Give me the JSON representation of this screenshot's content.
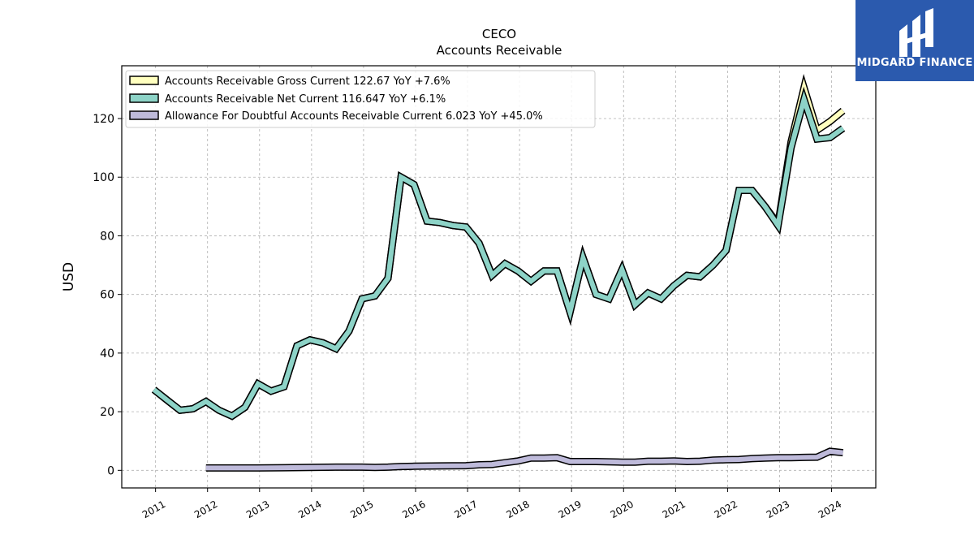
{
  "chart_data": {
    "type": "line",
    "title": "CECO",
    "subtitle": "Accounts Receivable",
    "ylabel": "USD",
    "xlabel": "",
    "ylim": [
      -6,
      138
    ],
    "xlim": [
      2010.35,
      2024.85
    ],
    "y_ticks": [
      0,
      20,
      40,
      60,
      80,
      100,
      120
    ],
    "x_ticks": [
      2011,
      2012,
      2013,
      2014,
      2015,
      2016,
      2017,
      2018,
      2019,
      2020,
      2021,
      2022,
      2023,
      2024
    ],
    "x_tick_labels": [
      "2011",
      "2012",
      "2013",
      "2014",
      "2015",
      "2016",
      "2017",
      "2018",
      "2019",
      "2020",
      "2021",
      "2022",
      "2023",
      "2024"
    ],
    "grid": true,
    "legend_position": "top-left",
    "series": [
      {
        "name": "Accounts Receivable Gross Current",
        "legend_label": "Accounts Receivable Gross Current  122.67 YoY +7.6%",
        "color": "#ffffbf",
        "x": [
          2010.97,
          2011.22,
          2011.47,
          2011.72,
          2011.97,
          2012.22,
          2012.47,
          2012.72,
          2012.97,
          2013.22,
          2013.47,
          2013.72,
          2013.97,
          2014.22,
          2014.47,
          2014.72,
          2014.97,
          2015.22,
          2015.47,
          2015.72,
          2015.97,
          2016.22,
          2016.47,
          2016.72,
          2016.97,
          2017.22,
          2017.47,
          2017.72,
          2017.97,
          2018.22,
          2018.47,
          2018.72,
          2018.97,
          2019.22,
          2019.47,
          2019.72,
          2019.97,
          2020.22,
          2020.47,
          2020.72,
          2020.97,
          2021.22,
          2021.47,
          2021.72,
          2021.97,
          2022.22,
          2022.47,
          2022.72,
          2022.97,
          2023.22,
          2023.47,
          2023.72,
          2023.97,
          2024.22
        ],
        "values": [
          27.5,
          24,
          20.5,
          21,
          23.5,
          20.5,
          18.5,
          21.5,
          29.5,
          27,
          28.5,
          42.5,
          44.5,
          43.5,
          41.5,
          47.5,
          58.5,
          59.5,
          65.5,
          100,
          97.5,
          85,
          84.5,
          83.5,
          83,
          77.5,
          66.5,
          70.5,
          68,
          64.5,
          68,
          68,
          54,
          72.5,
          60,
          58.5,
          68.5,
          56.5,
          60.5,
          58.5,
          63,
          66.5,
          66,
          70,
          75,
          95.5,
          95.5,
          90,
          84,
          112,
          130.5,
          116,
          119,
          122.67
        ]
      },
      {
        "name": "Accounts Receivable Net Current",
        "legend_label": "Accounts Receivable Net Current  116.647 YoY +6.1%",
        "color": "#8dd3c7",
        "x": [
          2010.97,
          2011.22,
          2011.47,
          2011.72,
          2011.97,
          2012.22,
          2012.47,
          2012.72,
          2012.97,
          2013.22,
          2013.47,
          2013.72,
          2013.97,
          2014.22,
          2014.47,
          2014.72,
          2014.97,
          2015.22,
          2015.47,
          2015.72,
          2015.97,
          2016.22,
          2016.47,
          2016.72,
          2016.97,
          2017.22,
          2017.47,
          2017.72,
          2017.97,
          2018.22,
          2018.47,
          2018.72,
          2018.97,
          2019.22,
          2019.47,
          2019.72,
          2019.97,
          2020.22,
          2020.47,
          2020.72,
          2020.97,
          2021.22,
          2021.47,
          2021.72,
          2021.97,
          2022.22,
          2022.47,
          2022.72,
          2022.97,
          2023.22,
          2023.47,
          2023.72,
          2023.97,
          2024.22
        ],
        "values": [
          27.5,
          24,
          20.5,
          21,
          23.5,
          20.5,
          18.5,
          21.5,
          29.5,
          27,
          28.5,
          42.5,
          44.5,
          43.5,
          41.5,
          47.5,
          58.5,
          59.5,
          65.5,
          100,
          97.5,
          85,
          84.5,
          83.5,
          83,
          77.5,
          66.5,
          70.5,
          68,
          64.5,
          68,
          68,
          54,
          72.5,
          60,
          58.5,
          68.5,
          56.5,
          60.5,
          58.5,
          63,
          66.5,
          66,
          70,
          75,
          95.5,
          95.5,
          90,
          83.5,
          110,
          126.5,
          113,
          113.5,
          116.647
        ]
      },
      {
        "name": "Allowance For Doubtful Accounts Receivable Current",
        "legend_label": "Allowance For Doubtful Accounts Receivable Current  6.023 YoY +45.0%",
        "color": "#bebada",
        "x": [
          2011.97,
          2012.47,
          2012.97,
          2013.47,
          2013.97,
          2014.47,
          2014.97,
          2015.22,
          2015.47,
          2015.72,
          2015.97,
          2016.47,
          2016.97,
          2017.22,
          2017.47,
          2017.72,
          2017.97,
          2018.22,
          2018.47,
          2018.72,
          2018.97,
          2019.47,
          2019.97,
          2020.22,
          2020.47,
          2020.72,
          2020.97,
          2021.22,
          2021.47,
          2021.72,
          2021.97,
          2022.22,
          2022.47,
          2022.72,
          2022.97,
          2023.22,
          2023.47,
          2023.72,
          2023.97,
          2024.22
        ],
        "values": [
          0.8,
          0.8,
          0.8,
          0.9,
          1.0,
          1.1,
          1.1,
          1.0,
          1.1,
          1.3,
          1.4,
          1.5,
          1.6,
          1.9,
          2.0,
          2.6,
          3.2,
          4.2,
          4.2,
          4.3,
          3.0,
          3.0,
          2.8,
          2.8,
          3.1,
          3.1,
          3.2,
          3.0,
          3.1,
          3.5,
          3.6,
          3.7,
          4.0,
          4.2,
          4.3,
          4.3,
          4.4,
          4.5,
          6.5,
          6.023
        ]
      }
    ]
  },
  "logo": {
    "text": "MIDGARD FINANCE",
    "bg_color": "#2b5aae"
  }
}
